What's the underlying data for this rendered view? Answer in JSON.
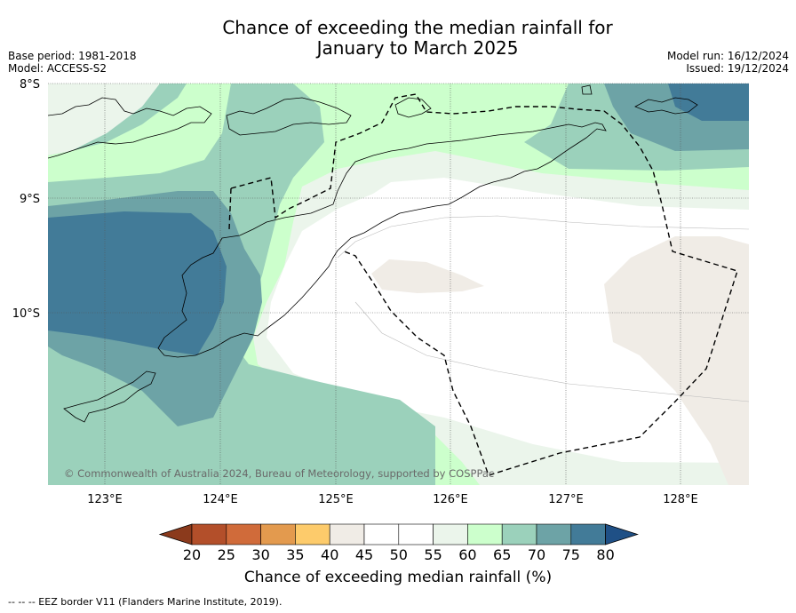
{
  "title_line1": "Chance of exceeding the median rainfall for",
  "title_line2": "January to March 2025",
  "base_period": "Base period: 1981-2018",
  "model": "Model: ACCESS-S2",
  "model_run": "Model run: 16/12/2024",
  "issued": "Issued: 19/12/2024",
  "map": {
    "lat_labels": [
      "8°S",
      "9°S",
      "10°S"
    ],
    "lon_labels": [
      "123°E",
      "124°E",
      "125°E",
      "126°E",
      "127°E",
      "128°E"
    ],
    "copyright": "© Commonwealth of Australia 2024, Bureau of Meteorology, supported by COSPPac",
    "shown_range": {
      "lat": [
        -8,
        -11.5
      ],
      "lon": [
        122.6,
        128.6
      ]
    }
  },
  "colorbar": {
    "ticks": [
      "20",
      "25",
      "30",
      "35",
      "40",
      "45",
      "50",
      "55",
      "60",
      "65",
      "70",
      "75",
      "80"
    ],
    "colors": [
      "#8b3a1c",
      "#b34f2a",
      "#d06b3a",
      "#e39a4e",
      "#fdcb6b",
      "#f0ece6",
      "#ffffff",
      "#ffffff",
      "#ebf5eb",
      "#ccffcc",
      "#9bd1bb",
      "#6da3a6",
      "#427b98",
      "#1f5086"
    ],
    "label": "Chance of exceeding median rainfall (%)"
  },
  "footnote": "--  --  -- EEZ border V11 (Flanders Marine Institute, 2019)."
}
